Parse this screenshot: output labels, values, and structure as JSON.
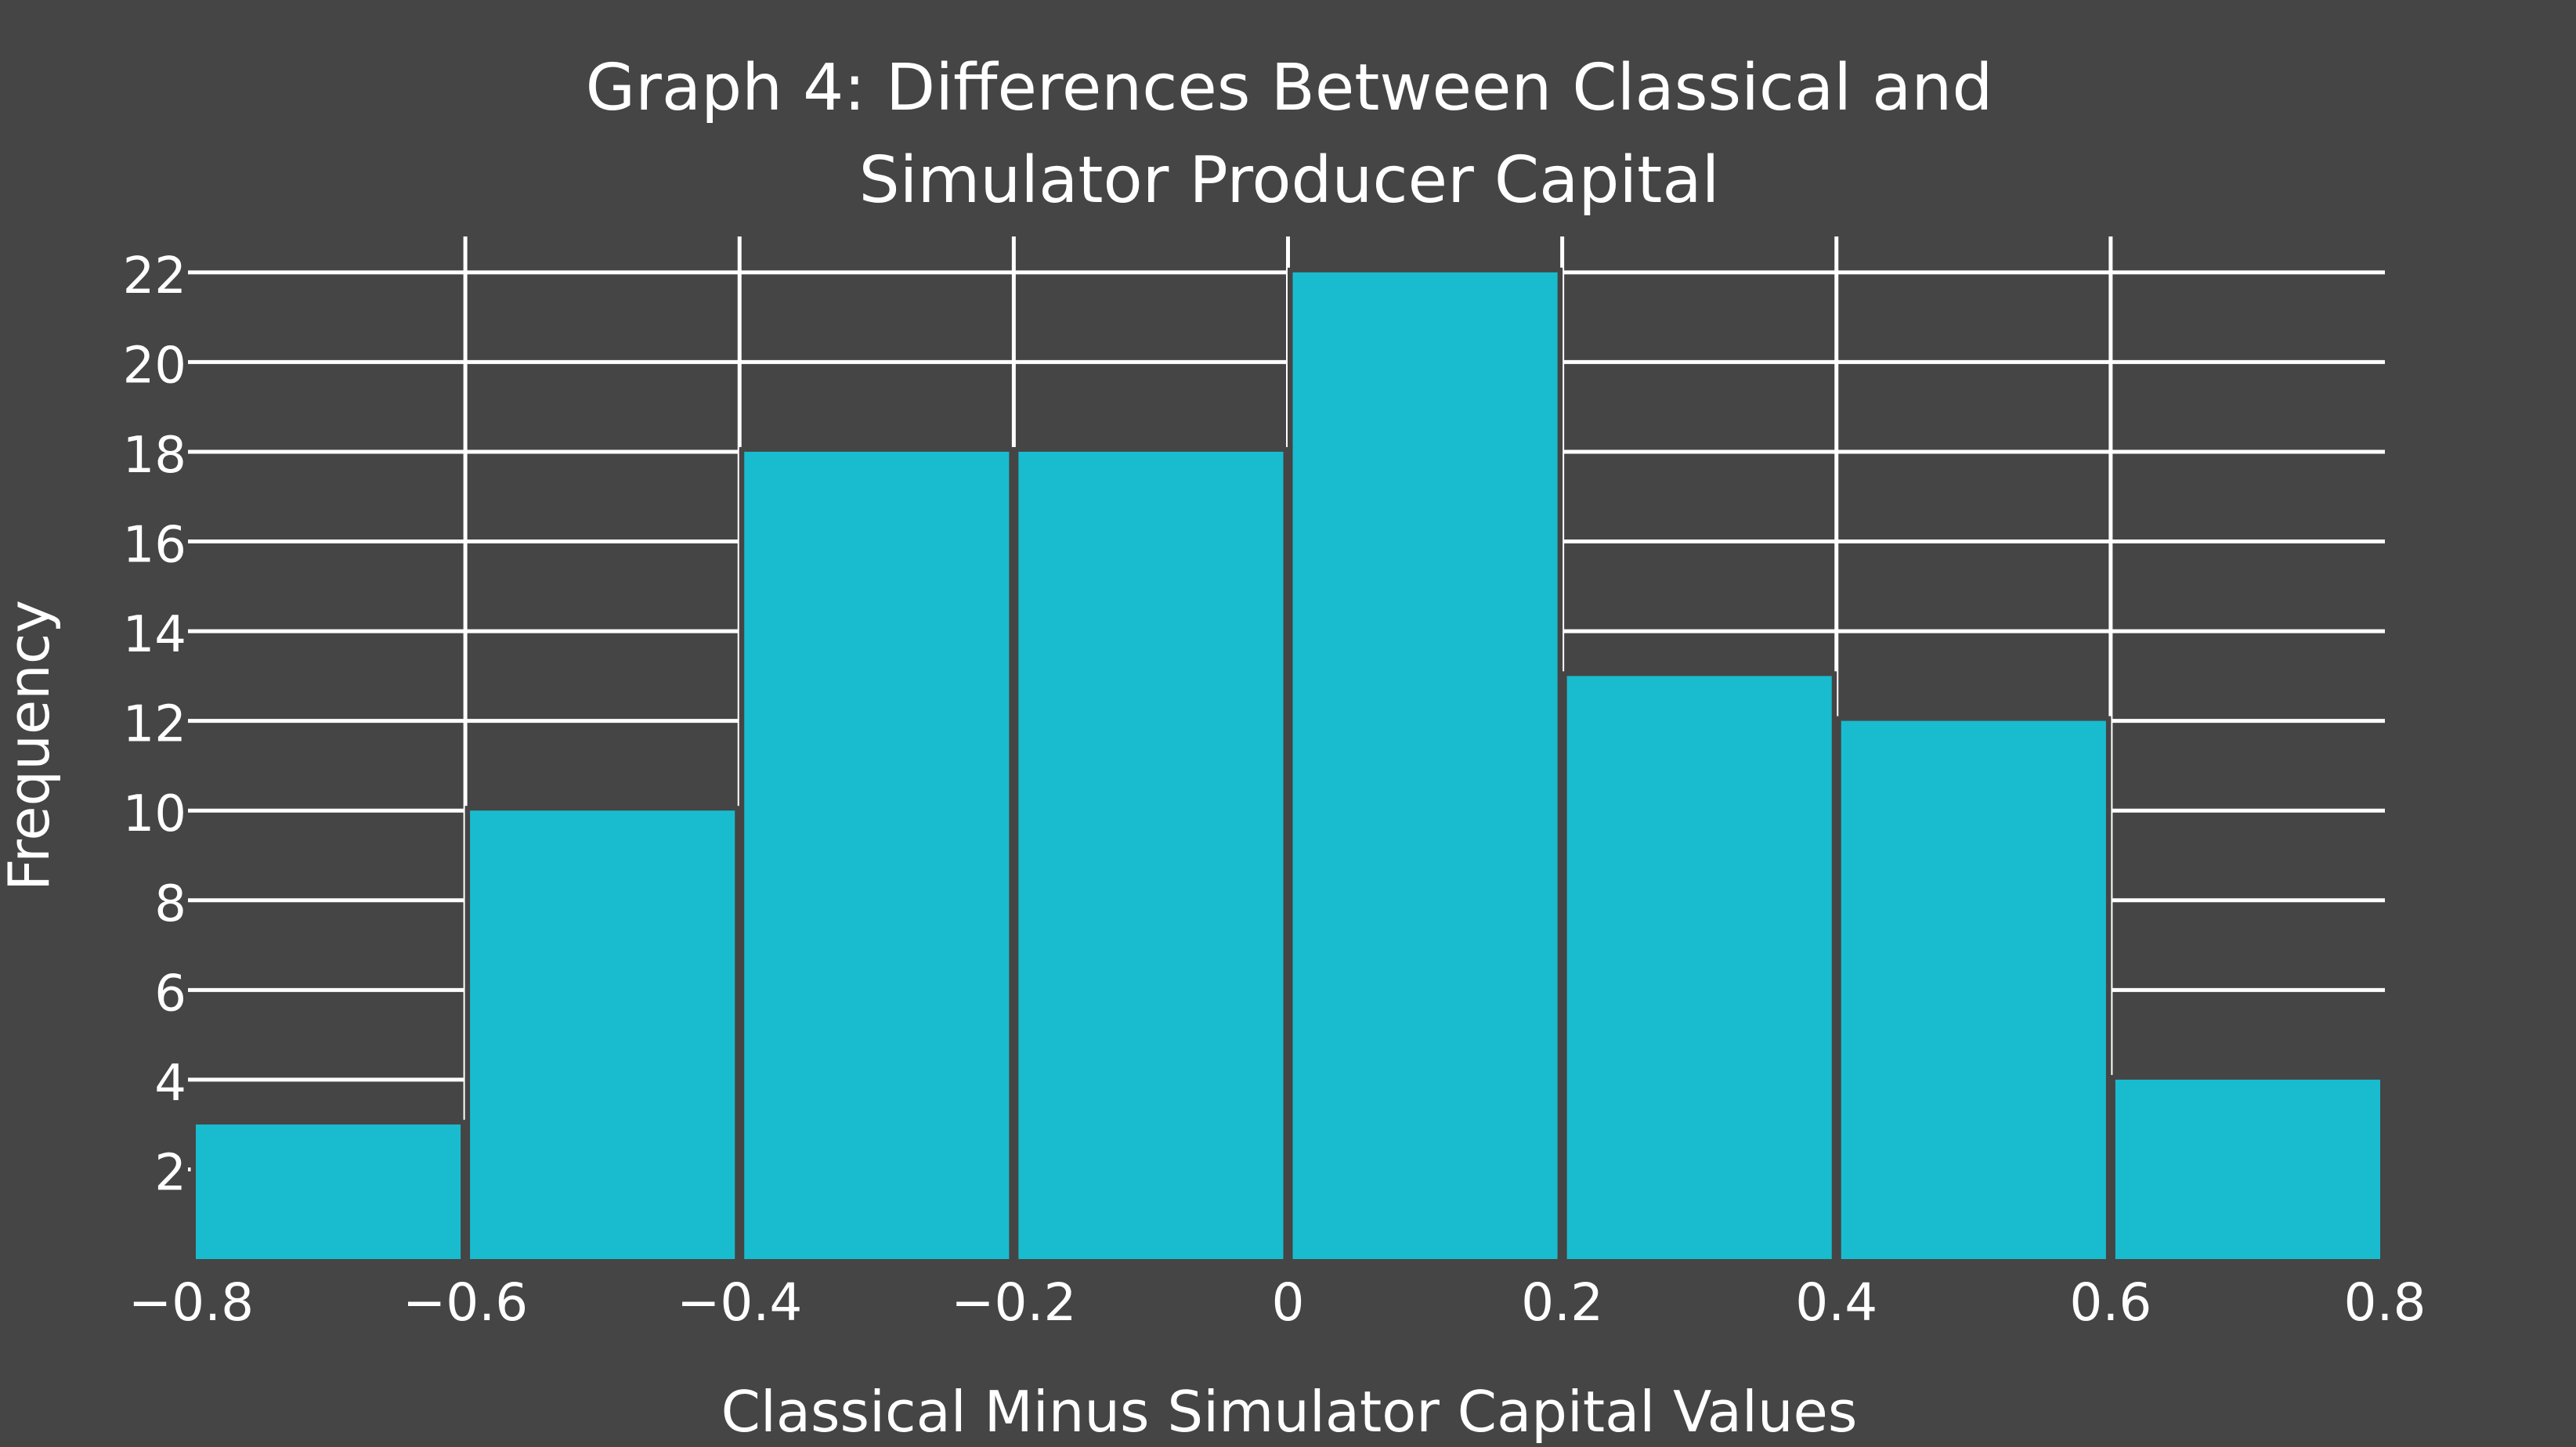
{
  "chart_data": {
    "type": "bar",
    "title_lines": [
      "Graph 4: Differences Between Classical and",
      "Simulator Producer Capital"
    ],
    "xlabel": "Classical Minus Simulator Capital Values",
    "ylabel": "Frequency",
    "bins": [
      {
        "start": -0.8,
        "end": -0.6,
        "value": 3
      },
      {
        "start": -0.6,
        "end": -0.4,
        "value": 10
      },
      {
        "start": -0.4,
        "end": -0.2,
        "value": 18
      },
      {
        "start": -0.2,
        "end": 0,
        "value": 18
      },
      {
        "start": 0,
        "end": 0.2,
        "value": 22
      },
      {
        "start": 0.2,
        "end": 0.4,
        "value": 13
      },
      {
        "start": 0.4,
        "end": 0.6,
        "value": 12
      },
      {
        "start": 0.6,
        "end": 0.8,
        "value": 4
      }
    ],
    "xlim": [
      -0.8,
      0.8
    ],
    "ylim": [
      0,
      22.8
    ],
    "x_ticks": [
      -0.8,
      -0.6,
      -0.4,
      -0.2,
      0,
      0.2,
      0.4,
      0.6,
      0.8
    ],
    "x_tick_labels": [
      "−0.8",
      "−0.6",
      "−0.4",
      "−0.2",
      "0",
      "0.2",
      "0.4",
      "0.6",
      "0.8"
    ],
    "y_ticks": [
      2,
      4,
      6,
      8,
      10,
      12,
      14,
      16,
      18,
      20,
      22
    ],
    "y_tick_labels": [
      "2",
      "4",
      "6",
      "8",
      "10",
      "12",
      "14",
      "16",
      "18",
      "20",
      "22"
    ],
    "grid": "horizontal and vertical, drawn behind bars",
    "legend": "none",
    "colors": {
      "background": "#454545",
      "bar": "#19bccf",
      "grid": "#ffffff",
      "text": "#ffffff"
    }
  }
}
